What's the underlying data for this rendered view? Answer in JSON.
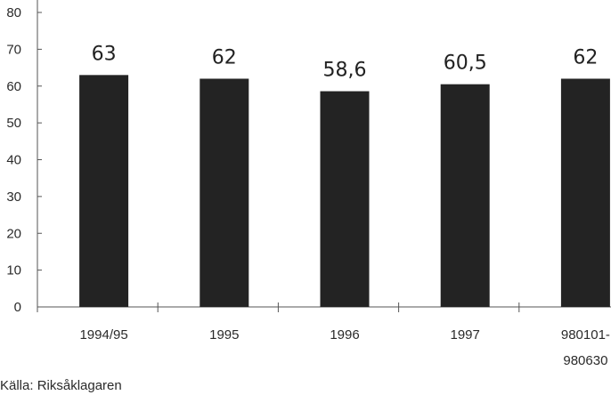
{
  "chart_data": {
    "type": "bar",
    "categories": [
      "1994/95",
      "1995",
      "1996",
      "1997",
      "980101-\n980630"
    ],
    "category_lines": [
      [
        "1994/95"
      ],
      [
        "1995"
      ],
      [
        "1996"
      ],
      [
        "1997"
      ],
      [
        "980101-",
        "980630"
      ]
    ],
    "values": [
      63,
      62,
      58.6,
      60.5,
      62
    ],
    "value_labels": [
      "63",
      "62",
      "58,6",
      "60,5",
      "62"
    ],
    "title": "",
    "xlabel": "",
    "ylabel": "",
    "ylim": [
      0,
      80
    ],
    "yticks": [
      0,
      10,
      20,
      30,
      40,
      50,
      60,
      70,
      80
    ],
    "grid": false,
    "bar_color": "#232323",
    "source": "Källa: Riksåklagaren"
  }
}
